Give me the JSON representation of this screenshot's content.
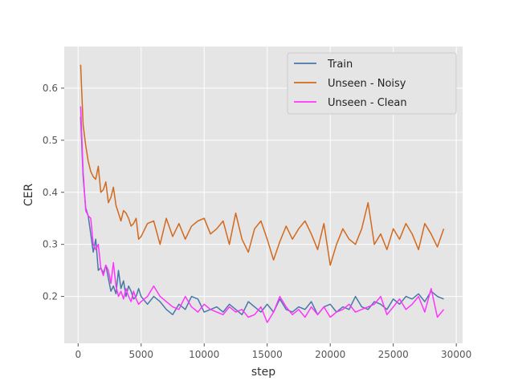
{
  "chart_data": {
    "type": "line",
    "xlabel": "step",
    "ylabel": "CER",
    "xlim": [
      -1100,
      30500
    ],
    "ylim": [
      0.11,
      0.68
    ],
    "xticks": [
      0,
      5000,
      10000,
      15000,
      20000,
      25000,
      30000
    ],
    "yticks": [
      0.2,
      0.3,
      0.4,
      0.5,
      0.6
    ],
    "grid": true,
    "legend": "top-right",
    "series": [
      {
        "name": "Train",
        "color": "#4878a8",
        "x": [
          200,
          400,
          600,
          800,
          1000,
          1200,
          1400,
          1600,
          1800,
          2000,
          2200,
          2400,
          2600,
          2800,
          3000,
          3200,
          3400,
          3600,
          3800,
          4000,
          4200,
          4400,
          4600,
          4800,
          5000,
          5500,
          6000,
          6500,
          7000,
          7500,
          8000,
          8500,
          9000,
          9500,
          10000,
          10500,
          11000,
          11500,
          12000,
          12500,
          13000,
          13500,
          14000,
          14500,
          15000,
          15500,
          16000,
          16500,
          17000,
          17500,
          18000,
          18500,
          19000,
          19500,
          20000,
          20500,
          21000,
          21500,
          22000,
          22500,
          23000,
          23500,
          24000,
          24500,
          25000,
          25500,
          26000,
          26500,
          27000,
          27500,
          28000,
          28500,
          29000
        ],
        "y": [
          0.545,
          0.43,
          0.37,
          0.355,
          0.32,
          0.285,
          0.31,
          0.25,
          0.255,
          0.245,
          0.26,
          0.235,
          0.21,
          0.22,
          0.205,
          0.25,
          0.215,
          0.23,
          0.2,
          0.22,
          0.21,
          0.195,
          0.2,
          0.215,
          0.2,
          0.185,
          0.2,
          0.19,
          0.175,
          0.165,
          0.185,
          0.175,
          0.2,
          0.195,
          0.17,
          0.175,
          0.18,
          0.17,
          0.185,
          0.175,
          0.165,
          0.19,
          0.18,
          0.17,
          0.185,
          0.17,
          0.195,
          0.175,
          0.17,
          0.18,
          0.175,
          0.19,
          0.165,
          0.18,
          0.185,
          0.17,
          0.18,
          0.175,
          0.2,
          0.18,
          0.175,
          0.19,
          0.185,
          0.175,
          0.195,
          0.185,
          0.2,
          0.195,
          0.205,
          0.19,
          0.21,
          0.2,
          0.195
        ]
      },
      {
        "name": "Unseen - Noisy",
        "color": "#d2691e",
        "x": [
          200,
          400,
          600,
          800,
          1000,
          1200,
          1400,
          1600,
          1800,
          2000,
          2200,
          2400,
          2600,
          2800,
          3000,
          3200,
          3400,
          3600,
          3800,
          4000,
          4200,
          4400,
          4600,
          4800,
          5000,
          5500,
          6000,
          6500,
          7000,
          7500,
          8000,
          8500,
          9000,
          9500,
          10000,
          10500,
          11000,
          11500,
          12000,
          12500,
          13000,
          13500,
          14000,
          14500,
          15000,
          15500,
          16000,
          16500,
          17000,
          17500,
          18000,
          18500,
          19000,
          19500,
          20000,
          20500,
          21000,
          21500,
          22000,
          22500,
          23000,
          23500,
          24000,
          24500,
          25000,
          25500,
          26000,
          26500,
          27000,
          27500,
          28000,
          28500,
          29000
        ],
        "y": [
          0.645,
          0.53,
          0.49,
          0.46,
          0.44,
          0.43,
          0.425,
          0.45,
          0.4,
          0.405,
          0.42,
          0.38,
          0.39,
          0.41,
          0.375,
          0.36,
          0.345,
          0.365,
          0.36,
          0.35,
          0.335,
          0.34,
          0.35,
          0.31,
          0.315,
          0.34,
          0.345,
          0.3,
          0.35,
          0.315,
          0.34,
          0.31,
          0.335,
          0.345,
          0.35,
          0.32,
          0.33,
          0.345,
          0.3,
          0.36,
          0.31,
          0.285,
          0.33,
          0.345,
          0.31,
          0.27,
          0.305,
          0.335,
          0.31,
          0.33,
          0.345,
          0.32,
          0.29,
          0.34,
          0.26,
          0.3,
          0.33,
          0.31,
          0.3,
          0.33,
          0.38,
          0.3,
          0.32,
          0.29,
          0.33,
          0.31,
          0.34,
          0.32,
          0.29,
          0.34,
          0.32,
          0.295,
          0.33
        ]
      },
      {
        "name": "Unseen - Clean",
        "color": "#ff33ff",
        "x": [
          200,
          400,
          600,
          800,
          1000,
          1200,
          1400,
          1600,
          1800,
          2000,
          2200,
          2400,
          2600,
          2800,
          3000,
          3200,
          3400,
          3600,
          3800,
          4000,
          4200,
          4400,
          4600,
          4800,
          5000,
          5500,
          6000,
          6500,
          7000,
          7500,
          8000,
          8500,
          9000,
          9500,
          10000,
          10500,
          11000,
          11500,
          12000,
          12500,
          13000,
          13500,
          14000,
          14500,
          15000,
          15500,
          16000,
          16500,
          17000,
          17500,
          18000,
          18500,
          19000,
          19500,
          20000,
          20500,
          21000,
          21500,
          22000,
          22500,
          23000,
          23500,
          24000,
          24500,
          25000,
          25500,
          26000,
          26500,
          27000,
          27500,
          28000,
          28500,
          29000
        ],
        "y": [
          0.565,
          0.44,
          0.365,
          0.355,
          0.35,
          0.3,
          0.29,
          0.3,
          0.255,
          0.24,
          0.26,
          0.25,
          0.225,
          0.265,
          0.22,
          0.2,
          0.21,
          0.195,
          0.215,
          0.2,
          0.19,
          0.21,
          0.195,
          0.185,
          0.19,
          0.2,
          0.22,
          0.2,
          0.19,
          0.18,
          0.175,
          0.2,
          0.18,
          0.17,
          0.185,
          0.175,
          0.17,
          0.165,
          0.18,
          0.17,
          0.175,
          0.16,
          0.165,
          0.18,
          0.15,
          0.17,
          0.2,
          0.18,
          0.165,
          0.175,
          0.16,
          0.18,
          0.165,
          0.18,
          0.16,
          0.17,
          0.175,
          0.185,
          0.17,
          0.175,
          0.18,
          0.185,
          0.2,
          0.165,
          0.18,
          0.195,
          0.175,
          0.185,
          0.2,
          0.17,
          0.215,
          0.16,
          0.175
        ]
      }
    ]
  }
}
